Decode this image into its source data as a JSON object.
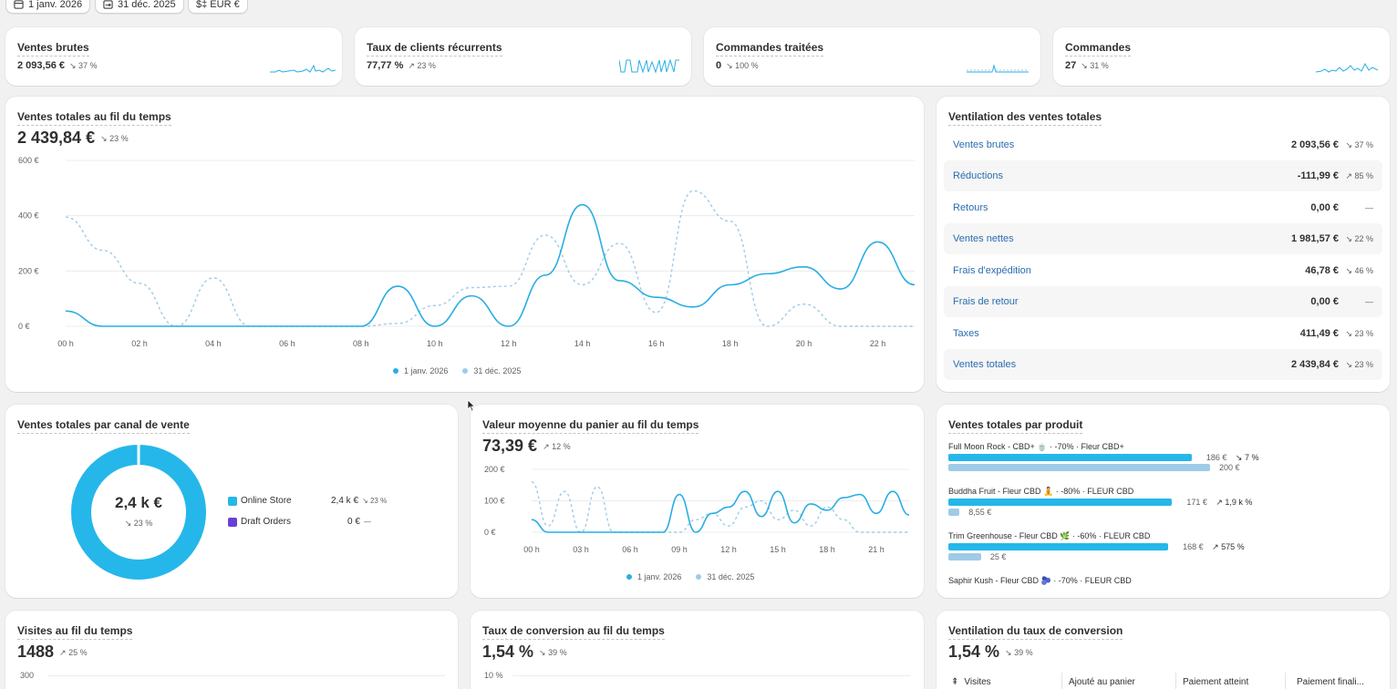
{
  "filters": {
    "start_date": "1 janv. 2026",
    "end_date": "31 déc. 2025",
    "currency": "$‡ EUR €"
  },
  "kpis": [
    {
      "title": "Ventes brutes",
      "value": "2 093,56 €",
      "delta": "↘ 37 %"
    },
    {
      "title": "Taux de clients récurrents",
      "value": "77,77 %",
      "delta": "↗ 23 %"
    },
    {
      "title": "Commandes traitées",
      "value": "0",
      "delta": "↘ 100 %"
    },
    {
      "title": "Commandes",
      "value": "27",
      "delta": "↘ 31 %"
    }
  ],
  "total_sales": {
    "title": "Ventes totales au fil du temps",
    "value": "2 439,84 €",
    "delta": "↘ 23 %",
    "legend": [
      "1 janv. 2026",
      "31 déc. 2025"
    ]
  },
  "breakdown": {
    "title": "Ventilation des ventes totales",
    "rows": [
      {
        "label": "Ventes brutes",
        "value": "2 093,56 €",
        "delta": "↘ 37 %"
      },
      {
        "label": "Réductions",
        "value": "-111,99 €",
        "delta": "↗ 85 %"
      },
      {
        "label": "Retours",
        "value": "0,00 €",
        "delta": "—"
      },
      {
        "label": "Ventes nettes",
        "value": "1 981,57 €",
        "delta": "↘ 22 %"
      },
      {
        "label": "Frais d'expédition",
        "value": "46,78 €",
        "delta": "↘ 46 %"
      },
      {
        "label": "Frais de retour",
        "value": "0,00 €",
        "delta": "—"
      },
      {
        "label": "Taxes",
        "value": "411,49 €",
        "delta": "↘ 23 %"
      },
      {
        "label": "Ventes totales",
        "value": "2 439,84 €",
        "delta": "↘ 23 %"
      }
    ]
  },
  "channel": {
    "title": "Ventes totales par canal de vente",
    "center_value": "2,4 k €",
    "center_delta": "↘ 23 %",
    "items": [
      {
        "label": "Online Store",
        "value": "2,4 k €",
        "delta": "↘ 23 %",
        "color": "#25b7ea"
      },
      {
        "label": "Draft Orders",
        "value": "0 €",
        "delta": "—",
        "color": "#6a3fd9"
      }
    ]
  },
  "aov": {
    "title": "Valeur moyenne du panier au fil du temps",
    "value": "73,39 €",
    "delta": "↗ 12 %",
    "legend": [
      "1 janv. 2026",
      "31 déc. 2025"
    ]
  },
  "product": {
    "title": "Ventes totales par produit",
    "items": [
      {
        "name": "Full Moon Rock - CBD+ 🍵 · -70% · Fleur CBD+",
        "current": 186,
        "current_label": "186 €",
        "previous": 200,
        "previous_label": "200 €",
        "delta": "↘ 7 %"
      },
      {
        "name": "Buddha Fruit - Fleur CBD 🧘 · -80% · FLEUR CBD",
        "current": 171,
        "current_label": "171 €",
        "previous": 8.55,
        "previous_label": "8,55 €",
        "delta": "↗ 1,9 k %"
      },
      {
        "name": "Trim Greenhouse - Fleur CBD 🌿 · -60% · FLEUR CBD",
        "current": 168,
        "current_label": "168 €",
        "previous": 25,
        "previous_label": "25 €",
        "delta": "↗ 575 %"
      },
      {
        "name": "Saphir Kush - Fleur CBD 🫐 · -70% · FLEUR CBD"
      }
    ]
  },
  "visits": {
    "title": "Visites au fil du temps",
    "value": "1488",
    "delta": "↗ 25 %",
    "y_top": "300"
  },
  "conversion": {
    "title": "Taux de conversion au fil du temps",
    "value": "1,54 %",
    "delta": "↘ 39 %",
    "y_top": "10 %"
  },
  "conv_breakdown": {
    "title": "Ventilation du taux de conversion",
    "value": "1,54 %",
    "delta": "↘ 39 %",
    "columns": [
      "Visites",
      "Ajouté au panier",
      "Paiement atteint",
      "Paiement finali..."
    ]
  },
  "chart_data": [
    {
      "type": "line",
      "title": "Ventes totales au fil du temps",
      "x": [
        "00 h",
        "01 h",
        "02 h",
        "03 h",
        "04 h",
        "05 h",
        "06 h",
        "07 h",
        "08 h",
        "09 h",
        "10 h",
        "11 h",
        "12 h",
        "13 h",
        "14 h",
        "15 h",
        "16 h",
        "17 h",
        "18 h",
        "19 h",
        "20 h",
        "21 h",
        "22 h",
        "23 h"
      ],
      "x_ticks": [
        "00 h",
        "02 h",
        "04 h",
        "06 h",
        "08 h",
        "10 h",
        "12 h",
        "14 h",
        "16 h",
        "18 h",
        "20 h",
        "22 h"
      ],
      "y_ticks": [
        "0 €",
        "200 €",
        "400 €",
        "600 €"
      ],
      "ylim": [
        0,
        600
      ],
      "series": [
        {
          "name": "1 janv. 2026",
          "color": "#29aee3",
          "dashed": false,
          "values": [
            55,
            0,
            0,
            0,
            0,
            0,
            0,
            0,
            0,
            145,
            0,
            110,
            0,
            185,
            440,
            165,
            105,
            70,
            150,
            190,
            215,
            135,
            305,
            150
          ]
        },
        {
          "name": "31 déc. 2025",
          "color": "#9fcbe8",
          "dashed": true,
          "values": [
            395,
            275,
            155,
            0,
            175,
            0,
            0,
            0,
            0,
            10,
            75,
            140,
            145,
            330,
            150,
            300,
            50,
            490,
            380,
            0,
            80,
            0,
            0,
            0
          ]
        }
      ]
    },
    {
      "type": "line",
      "title": "Valeur moyenne du panier au fil du temps",
      "x": [
        "00 h",
        "01 h",
        "02 h",
        "03 h",
        "04 h",
        "05 h",
        "06 h",
        "07 h",
        "08 h",
        "09 h",
        "10 h",
        "11 h",
        "12 h",
        "13 h",
        "14 h",
        "15 h",
        "16 h",
        "17 h",
        "18 h",
        "19 h",
        "20 h",
        "21 h",
        "22 h",
        "23 h"
      ],
      "x_ticks": [
        "00 h",
        "03 h",
        "06 h",
        "09 h",
        "12 h",
        "15 h",
        "18 h",
        "21 h"
      ],
      "y_ticks": [
        "0 €",
        "100 €",
        "200 €"
      ],
      "ylim": [
        0,
        200
      ],
      "series": [
        {
          "name": "1 janv. 2026",
          "color": "#29aee3",
          "dashed": false,
          "values": [
            40,
            0,
            0,
            0,
            0,
            0,
            0,
            0,
            0,
            120,
            0,
            60,
            80,
            130,
            50,
            130,
            30,
            90,
            70,
            110,
            120,
            60,
            130,
            55
          ]
        },
        {
          "name": "31 déc. 2025",
          "color": "#9fcbe8",
          "dashed": true,
          "values": [
            160,
            20,
            130,
            0,
            145,
            0,
            0,
            0,
            0,
            0,
            40,
            60,
            20,
            80,
            100,
            40,
            70,
            20,
            80,
            40,
            0,
            0,
            0,
            0
          ]
        }
      ]
    },
    {
      "type": "pie",
      "title": "Ventes totales par canal de vente",
      "categories": [
        "Online Store",
        "Draft Orders"
      ],
      "values": [
        2439.84,
        0
      ]
    },
    {
      "type": "bar",
      "title": "Ventes totales par produit",
      "categories": [
        "Full Moon Rock",
        "Buddha Fruit",
        "Trim Greenhouse"
      ],
      "series": [
        {
          "name": "1 janv. 2026",
          "values": [
            186,
            171,
            168
          ]
        },
        {
          "name": "31 déc. 2025",
          "values": [
            200,
            8.55,
            25
          ]
        }
      ]
    }
  ]
}
